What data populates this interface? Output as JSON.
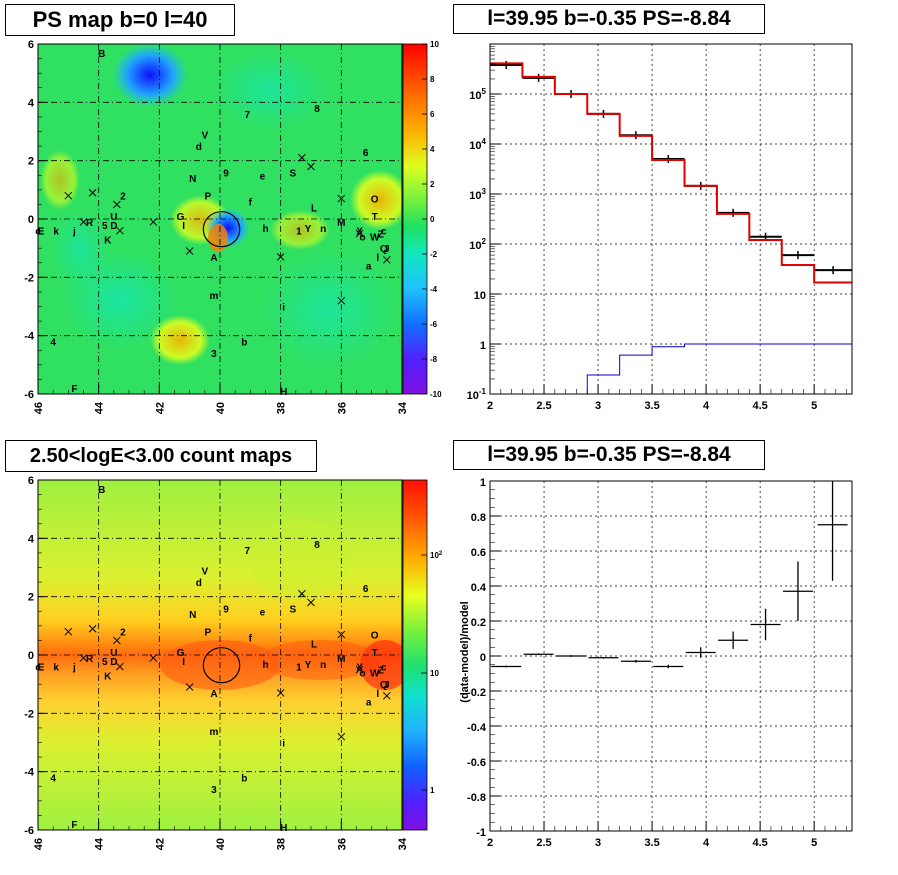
{
  "titles": {
    "ps_map": "PS map b=0 l=40",
    "spectrum": "l=39.95 b=-0.35 PS=-8.84",
    "count_map": "2.50<logE<3.00 count maps",
    "residual": "l=39.95 b=-0.35 PS=-8.84"
  },
  "colors": {
    "data_line": "#000000",
    "model_line": "#e00000",
    "ps_line": "#0000cc",
    "grid": "#000000"
  },
  "chart_data": [
    {
      "type": "heatmap",
      "name": "ps_map",
      "xlim": [
        46,
        34
      ],
      "ylim": [
        -6,
        6
      ],
      "x_ticks": [
        "46",
        "44",
        "42",
        "40",
        "38",
        "36",
        "34"
      ],
      "y_ticks": [
        "6",
        "4",
        "2",
        "0",
        "-2",
        "-4",
        "-6"
      ],
      "colorbar_ticks": [
        "10",
        "8",
        "6",
        "4",
        "2",
        "0",
        "-2",
        "-4",
        "-6",
        "-8",
        "-10"
      ],
      "z_range": [
        -10,
        10
      ],
      "grid": true,
      "circle": {
        "l": 39.95,
        "b": -0.35,
        "r": 0.6
      }
    },
    {
      "type": "line",
      "name": "spectrum",
      "log_y": true,
      "xlim": [
        2,
        5.35
      ],
      "ylim": [
        0.1,
        1000000
      ],
      "x_ticks": [
        "2",
        "2.5",
        "3",
        "3.5",
        "4",
        "4.5",
        "5"
      ],
      "y_ticks": [
        "10^-1",
        "1",
        "10",
        "10^2",
        "10^3",
        "10^4",
        "10^5"
      ],
      "grid": true,
      "edges": [
        2.0,
        2.3,
        2.6,
        2.9,
        3.2,
        3.5,
        3.8,
        4.1,
        4.4,
        4.7,
        5.0,
        5.35
      ],
      "data": [
        380000,
        210000,
        100000,
        40000,
        15000,
        5000,
        1450,
        420,
        140,
        60,
        30
      ],
      "model": [
        410000,
        220000,
        100000,
        40000,
        14500,
        4800,
        1450,
        400,
        120,
        38,
        17
      ],
      "ps": [
        0.1,
        0.1,
        0.1,
        0.24,
        0.6,
        0.88,
        1.0,
        1.0,
        1.0,
        1.0,
        1.0
      ]
    },
    {
      "type": "heatmap",
      "name": "count_map",
      "xlim": [
        46,
        34
      ],
      "ylim": [
        -6,
        6
      ],
      "x_ticks": [
        "46",
        "44",
        "42",
        "40",
        "38",
        "36",
        "34"
      ],
      "y_ticks": [
        "6",
        "4",
        "2",
        "0",
        "-2",
        "-4",
        "-6"
      ],
      "colorbar_ticks": [
        "10^2",
        "10",
        "1"
      ],
      "log_z": true,
      "grid": true,
      "circle": {
        "l": 39.95,
        "b": -0.35,
        "r": 0.6
      }
    },
    {
      "type": "scatter",
      "name": "residual",
      "ylabel": "(data-model)/model",
      "xlim": [
        2,
        5.35
      ],
      "ylim": [
        -1,
        1
      ],
      "x_ticks": [
        "2",
        "2.5",
        "3",
        "3.5",
        "4",
        "4.5",
        "5"
      ],
      "y_ticks": [
        "1",
        "0.8",
        "0.6",
        "0.4",
        "0.2",
        "0",
        "-0.2",
        "-0.4",
        "-0.6",
        "-0.8",
        "-1"
      ],
      "grid": true,
      "x": [
        2.15,
        2.45,
        2.75,
        3.05,
        3.35,
        3.65,
        3.95,
        4.25,
        4.55,
        4.85,
        5.17
      ],
      "y": [
        -0.06,
        0.01,
        0.0,
        -0.01,
        -0.03,
        -0.06,
        0.02,
        0.09,
        0.18,
        0.37,
        0.75
      ],
      "yerr": [
        0.005,
        0.005,
        0.005,
        0.005,
        0.008,
        0.01,
        0.03,
        0.05,
        0.09,
        0.17,
        0.32
      ]
    }
  ],
  "map_labels": [
    {
      "t": "B",
      "l": 43.9,
      "b": 5.7
    },
    {
      "t": "7",
      "l": 39.1,
      "b": 3.6
    },
    {
      "t": "8",
      "l": 36.8,
      "b": 3.8
    },
    {
      "t": "V",
      "l": 40.5,
      "b": 2.9
    },
    {
      "t": "d",
      "l": 40.7,
      "b": 2.5
    },
    {
      "t": "6",
      "l": 35.2,
      "b": 2.3
    },
    {
      "t": "9",
      "l": 39.8,
      "b": 1.6
    },
    {
      "t": "N",
      "l": 40.9,
      "b": 1.4
    },
    {
      "t": "e",
      "l": 38.6,
      "b": 1.5
    },
    {
      "t": "S",
      "l": 37.6,
      "b": 1.6
    },
    {
      "t": "P",
      "l": 40.4,
      "b": 0.8
    },
    {
      "t": "2",
      "l": 43.2,
      "b": 0.8
    },
    {
      "t": "f",
      "l": 39.0,
      "b": 0.6
    },
    {
      "t": "L",
      "l": 36.9,
      "b": 0.4
    },
    {
      "t": "O",
      "l": 34.9,
      "b": 0.7
    },
    {
      "t": "G",
      "l": 41.3,
      "b": 0.1
    },
    {
      "t": "T",
      "l": 34.9,
      "b": 0.1
    },
    {
      "t": "M",
      "l": 36.0,
      "b": -0.1
    },
    {
      "t": "n",
      "l": 36.6,
      "b": -0.3
    },
    {
      "t": "Y",
      "l": 37.1,
      "b": -0.3
    },
    {
      "t": "1",
      "l": 37.4,
      "b": -0.4
    },
    {
      "t": "h",
      "l": 38.5,
      "b": -0.3
    },
    {
      "t": "I",
      "l": 41.2,
      "b": -0.2
    },
    {
      "t": "R",
      "l": 44.3,
      "b": -0.1
    },
    {
      "t": "5",
      "l": 43.8,
      "b": -0.2
    },
    {
      "t": "D",
      "l": 43.5,
      "b": -0.2
    },
    {
      "t": "U",
      "l": 43.5,
      "b": 0.1
    },
    {
      "t": "X",
      "l": 35.4,
      "b": -0.4
    },
    {
      "t": "W",
      "l": 34.9,
      "b": -0.6
    },
    {
      "t": "Z",
      "l": 34.7,
      "b": -0.5
    },
    {
      "t": "c",
      "l": 34.6,
      "b": -0.4
    },
    {
      "t": "g",
      "l": 33.9,
      "b": -0.4
    },
    {
      "t": "o",
      "l": 35.3,
      "b": -0.6
    },
    {
      "t": "Q",
      "l": 34.6,
      "b": -1.0
    },
    {
      "t": "J",
      "l": 34.5,
      "b": -1.0
    },
    {
      "t": "c",
      "l": 46.0,
      "b": -0.4
    },
    {
      "t": "E",
      "l": 45.9,
      "b": -0.4
    },
    {
      "t": "k",
      "l": 45.4,
      "b": -0.4
    },
    {
      "t": "j",
      "l": 44.8,
      "b": -0.4
    },
    {
      "t": "K",
      "l": 43.7,
      "b": -0.7
    },
    {
      "t": "A",
      "l": 40.2,
      "b": -1.3
    },
    {
      "t": "a",
      "l": 35.1,
      "b": -1.6
    },
    {
      "t": "l",
      "l": 34.8,
      "b": -1.3
    },
    {
      "t": "m",
      "l": 40.2,
      "b": -2.6
    },
    {
      "t": "i",
      "l": 37.9,
      "b": -3.0
    },
    {
      "t": "4",
      "l": 45.5,
      "b": -4.2
    },
    {
      "t": "b",
      "l": 39.2,
      "b": -4.2
    },
    {
      "t": "3",
      "l": 40.2,
      "b": -4.6
    },
    {
      "t": "F",
      "l": 44.8,
      "b": -5.8
    },
    {
      "t": "H",
      "l": 37.9,
      "b": -5.9
    }
  ],
  "map_crosses": [
    {
      "l": 45.0,
      "b": 0.8
    },
    {
      "l": 44.2,
      "b": 0.9
    },
    {
      "l": 43.4,
      "b": 0.5
    },
    {
      "l": 43.3,
      "b": -0.4
    },
    {
      "l": 42.2,
      "b": -0.1
    },
    {
      "l": 44.5,
      "b": -0.1
    },
    {
      "l": 37.3,
      "b": 2.1
    },
    {
      "l": 37.0,
      "b": 1.8
    },
    {
      "l": 36.0,
      "b": 0.7
    },
    {
      "l": 35.4,
      "b": -0.5
    },
    {
      "l": 34.5,
      "b": -1.4
    },
    {
      "l": 41.0,
      "b": -1.1
    },
    {
      "l": 38.0,
      "b": -1.3
    },
    {
      "l": 36.0,
      "b": -2.8
    }
  ]
}
